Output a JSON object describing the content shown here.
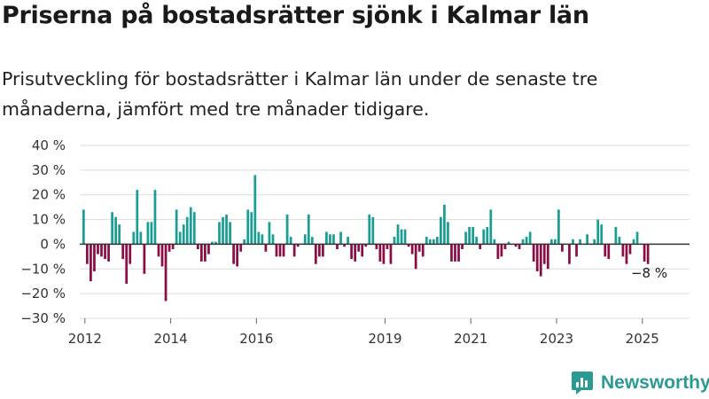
{
  "title": "Priserna på bostadsrätter sjönk i Kalmar län",
  "subtitle": "Prisutveckling för bostadsrätter i Kalmar län under de senaste tre månaderna, jämfört med tre månader tidigare.",
  "brand": "Newsworthy",
  "colors": {
    "positive": "#1a9e94",
    "negative": "#8a0d45",
    "brand": "#2a9a92",
    "grid": "#dcdcdc"
  },
  "chart_data": {
    "type": "bar",
    "ylim": [
      -30,
      40
    ],
    "yticks": [
      40,
      30,
      20,
      10,
      0,
      -10,
      -20,
      -30
    ],
    "ytick_labels": [
      "40 %",
      "30 %",
      "20 %",
      "10 %",
      "0 %",
      "−10 %",
      "−20 %",
      "−30 %"
    ],
    "xticks": [
      2012,
      2014,
      2016,
      2019,
      2021,
      2023,
      2025
    ],
    "xtick_labels": [
      "2012",
      "2014",
      "2016",
      "2019",
      "2021",
      "2023",
      "2025"
    ],
    "xlim": [
      2011.88,
      2026.1
    ],
    "bar_start": 2011.97,
    "bar_step": 0.0833,
    "values": [
      14,
      -8,
      -15,
      -11,
      -4,
      -5,
      -6,
      -7,
      13,
      11,
      8,
      -6,
      -16,
      -8,
      5,
      22,
      5,
      -12,
      9,
      9,
      22,
      -5,
      -9,
      -23,
      -3,
      -2,
      14,
      5,
      8,
      11,
      15,
      13,
      -2,
      -7,
      -7,
      -4,
      1,
      1,
      9,
      11,
      12,
      9,
      -8,
      -9,
      -3,
      2,
      14,
      13,
      28,
      5,
      4,
      -3,
      9,
      4,
      -5,
      -5,
      -5,
      12,
      3,
      -5,
      -1,
      0,
      4,
      12,
      3,
      -8,
      -5,
      -5,
      5,
      4,
      4,
      -2,
      5,
      -1,
      3,
      -6,
      -7,
      -3,
      -5,
      -1,
      12,
      11,
      -2,
      -7,
      -8,
      -2,
      -8,
      3,
      8,
      6,
      6,
      -1,
      -4,
      -10,
      -3,
      -5,
      3,
      2,
      2,
      3,
      11,
      16,
      9,
      -7,
      -7,
      -7,
      -2,
      5,
      7,
      7,
      3,
      -2,
      6,
      7,
      14,
      2,
      -6,
      -5,
      -2,
      1,
      0,
      -1,
      -2,
      2,
      3,
      5,
      -7,
      -11,
      -13,
      -8,
      -10,
      2,
      2,
      14,
      -3,
      0,
      -8,
      2,
      -5,
      2,
      0,
      4,
      0,
      2,
      10,
      8,
      -5,
      -6,
      0,
      7,
      3,
      -5,
      -8,
      -4,
      2,
      5,
      0,
      -7,
      -8
    ],
    "annotation": {
      "text": "−8 %"
    }
  }
}
